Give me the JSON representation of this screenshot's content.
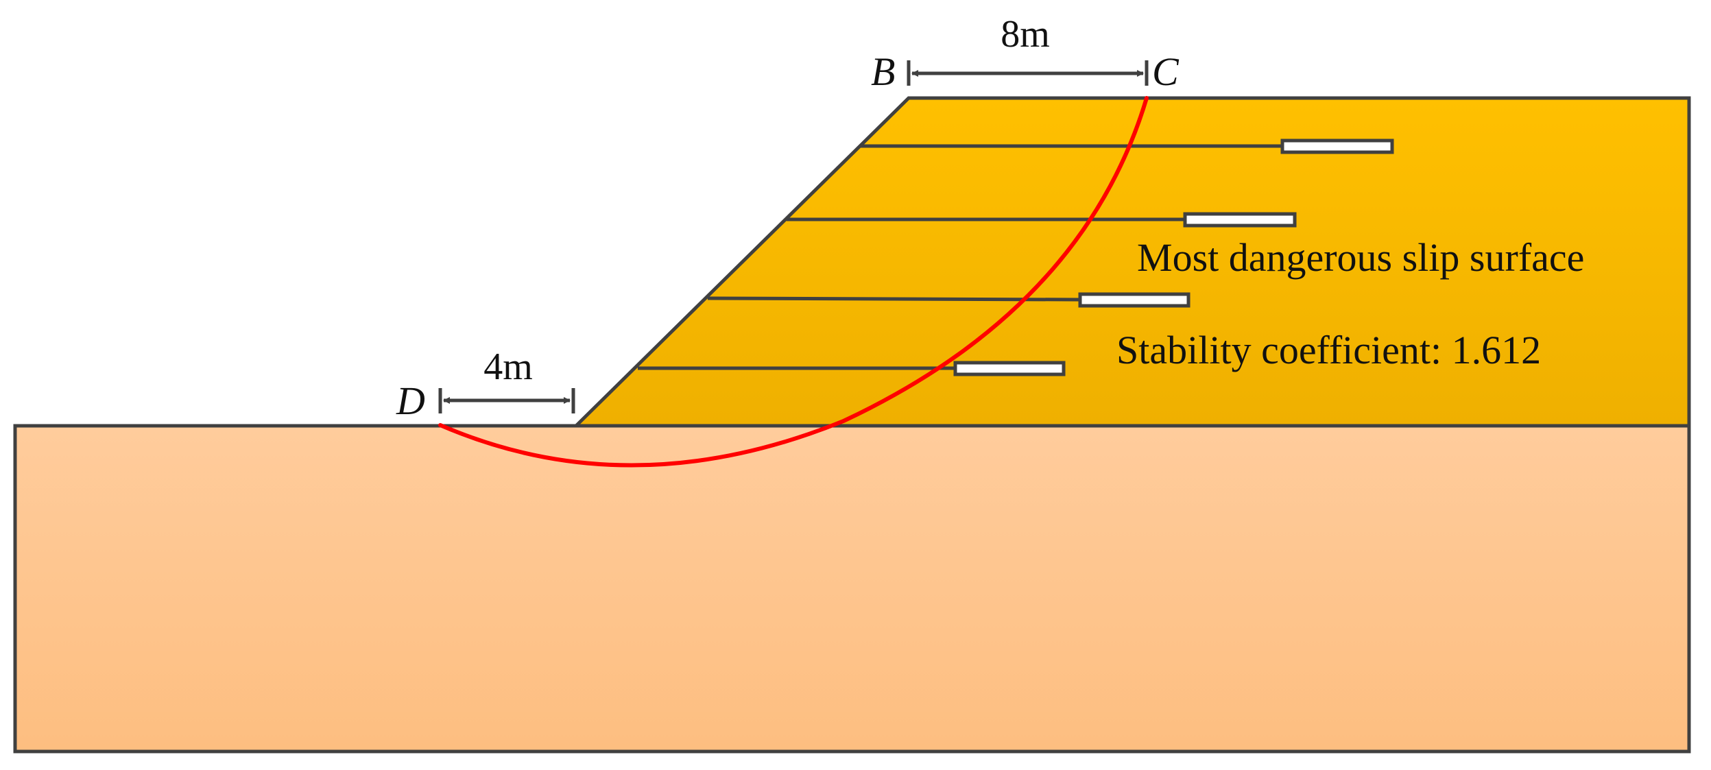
{
  "diagram": {
    "points": {
      "B": "B",
      "C": "C",
      "D": "D"
    },
    "dimensions": {
      "top": "8m",
      "toe": "4m"
    },
    "annotations": {
      "slip_surface": "Most dangerous slip surface",
      "stability": "Stability coefficient: 1.612"
    },
    "anchor_count": 4,
    "colors": {
      "slope_top": "#FFC000",
      "slope_bottom": "#EFB000",
      "ground_top": "#FFCC9C",
      "ground_bottom": "#FDBE80",
      "slip_surface": "#FF0000",
      "outline": "#404040",
      "anchor_fill": "#FFFFFF"
    }
  }
}
